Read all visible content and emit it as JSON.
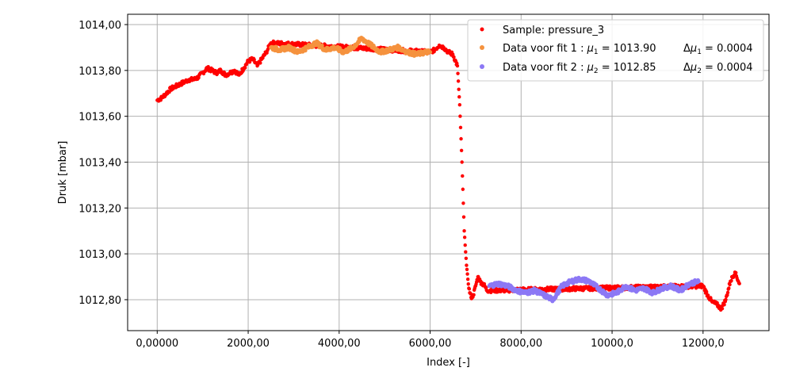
{
  "chart_data": {
    "type": "scatter",
    "xlabel": "Index [-]",
    "ylabel": "Druk [mbar]",
    "xlim": [
      -650,
      13450
    ],
    "ylim": [
      1012.665,
      1014.045
    ],
    "grid": true,
    "legend_position": "top-right",
    "x_ticks": [
      {
        "value": 0,
        "label": "0,00000"
      },
      {
        "value": 2000,
        "label": "2000,00"
      },
      {
        "value": 4000,
        "label": "4000,00"
      },
      {
        "value": 6000,
        "label": "6000,00"
      },
      {
        "value": 8000,
        "label": "8000,00"
      },
      {
        "value": 10000,
        "label": "10000,0"
      },
      {
        "value": 12000,
        "label": "12000,0"
      }
    ],
    "y_ticks": [
      {
        "value": 1012.8,
        "label": "1012,80"
      },
      {
        "value": 1013.0,
        "label": "1013,00"
      },
      {
        "value": 1013.2,
        "label": "1013,20"
      },
      {
        "value": 1013.4,
        "label": "1013,40"
      },
      {
        "value": 1013.6,
        "label": "1013,60"
      },
      {
        "value": 1013.8,
        "label": "1013,80"
      },
      {
        "value": 1014.0,
        "label": "1014,00"
      }
    ],
    "series": [
      {
        "name": "Sample: pressure_3",
        "color": "#ff0000",
        "x": [
          0,
          100,
          200,
          300,
          400,
          500,
          600,
          700,
          800,
          900,
          1000,
          1100,
          1200,
          1300,
          1400,
          1500,
          1600,
          1700,
          1800,
          1900,
          2000,
          2100,
          2200,
          2300,
          2400,
          2500,
          6000,
          6100,
          6200,
          6300,
          6400,
          6500,
          6600,
          6650,
          6700,
          6750,
          6800,
          6850,
          6900,
          6950,
          7000,
          7050,
          7100,
          7150,
          7200,
          7250,
          12000,
          12100,
          12200,
          12300,
          12400,
          12500,
          12600,
          12700,
          12800
        ],
        "y": [
          1013.67,
          1013.68,
          1013.7,
          1013.72,
          1013.73,
          1013.74,
          1013.75,
          1013.76,
          1013.76,
          1013.77,
          1013.79,
          1013.81,
          1013.8,
          1013.79,
          1013.8,
          1013.78,
          1013.79,
          1013.8,
          1013.78,
          1013.81,
          1013.84,
          1013.85,
          1013.82,
          1013.85,
          1013.88,
          1013.92,
          1013.88,
          1013.89,
          1013.91,
          1013.9,
          1013.88,
          1013.87,
          1013.82,
          1013.65,
          1013.4,
          1013.1,
          1012.95,
          1012.85,
          1012.81,
          1012.82,
          1012.86,
          1012.9,
          1012.88,
          1012.87,
          1012.86,
          1012.84,
          1012.86,
          1012.82,
          1012.79,
          1012.78,
          1012.76,
          1012.8,
          1012.88,
          1012.92,
          1012.87
        ]
      },
      {
        "name": "Data voor fit 1 : μ1 = 1013.90     Δμ1 = 0.0004",
        "color": "#f5923e",
        "x": [
          2500,
          2700,
          2900,
          3100,
          3300,
          3500,
          3700,
          3900,
          4100,
          4300,
          4500,
          4700,
          4900,
          5100,
          5300,
          5500,
          5700,
          5900,
          6000
        ],
        "y": [
          1013.9,
          1013.89,
          1013.9,
          1013.88,
          1013.9,
          1013.92,
          1013.89,
          1013.9,
          1013.88,
          1013.9,
          1013.94,
          1013.91,
          1013.88,
          1013.89,
          1013.9,
          1013.88,
          1013.87,
          1013.88,
          1013.88
        ]
      },
      {
        "name": "Data voor fit 2 : μ2 = 1012.85     Δμ2 = 0.0004",
        "color": "#8c78f5",
        "x": [
          7300,
          7500,
          7700,
          7900,
          8100,
          8300,
          8500,
          8700,
          8900,
          9100,
          9300,
          9500,
          9700,
          9900,
          10100,
          10300,
          10500,
          10700,
          10900,
          11100,
          11300,
          11500,
          11700,
          11900
        ],
        "y": [
          1012.86,
          1012.87,
          1012.86,
          1012.84,
          1012.83,
          1012.84,
          1012.82,
          1012.8,
          1012.86,
          1012.88,
          1012.89,
          1012.88,
          1012.85,
          1012.82,
          1012.83,
          1012.86,
          1012.84,
          1012.85,
          1012.83,
          1012.85,
          1012.86,
          1012.84,
          1012.87,
          1012.88
        ]
      }
    ],
    "legend": [
      {
        "text": "Sample: pressure_3",
        "color": "#ff0000"
      },
      {
        "text": "Data voor fit 1 : μ1 = 1013.90     Δμ1 = 0.0004",
        "color": "#f5923e"
      },
      {
        "text": "Data voor fit 2 : μ2 = 1012.85     Δμ2 = 0.0004",
        "color": "#8c78f5"
      }
    ]
  }
}
